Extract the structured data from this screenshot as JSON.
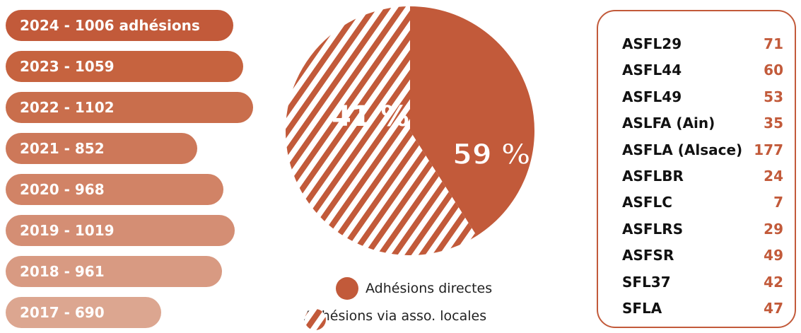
{
  "colors": {
    "accent": "#c25a3a",
    "bar_colors": [
      "#c25a3a",
      "#c6633f",
      "#c96e4c",
      "#cd7859",
      "#d18366",
      "#d48e74",
      "#d89a82",
      "#dca690"
    ]
  },
  "chart_data": [
    {
      "type": "bar",
      "orientation": "horizontal",
      "categories": [
        "2024 - 1006 adhésions",
        "2023 - 1059",
        "2022 - 1102",
        "2021 - 852",
        "2020 - 968",
        "2019 - 1019",
        "2018 - 961",
        "2017 - 690"
      ],
      "values": [
        1006,
        1059,
        1102,
        852,
        968,
        1019,
        961,
        690
      ]
    },
    {
      "type": "pie",
      "slices": [
        {
          "label": "Adhésions directes",
          "value": 41,
          "display": "41 %",
          "fill": "solid"
        },
        {
          "label": "Adhésions via asso. locales",
          "value": 59,
          "display": "59 %",
          "fill": "striped"
        }
      ],
      "legend": "bottom"
    },
    {
      "type": "table",
      "rows": [
        {
          "name": "ASFL29",
          "value": "71"
        },
        {
          "name": "ASFL44",
          "value": "60"
        },
        {
          "name": "ASFL49",
          "value": "53"
        },
        {
          "name": "ASLFA (Ain)",
          "value": "35"
        },
        {
          "name": "ASFLA (Alsace)",
          "value": "177"
        },
        {
          "name": "ASFLBR",
          "value": "24"
        },
        {
          "name": "ASFLC",
          "value": "7"
        },
        {
          "name": "ASFLRS",
          "value": "29"
        },
        {
          "name": "ASFSR",
          "value": "49"
        },
        {
          "name": "SFL37",
          "value": "42"
        },
        {
          "name": "SFLA",
          "value": "47"
        }
      ]
    }
  ]
}
